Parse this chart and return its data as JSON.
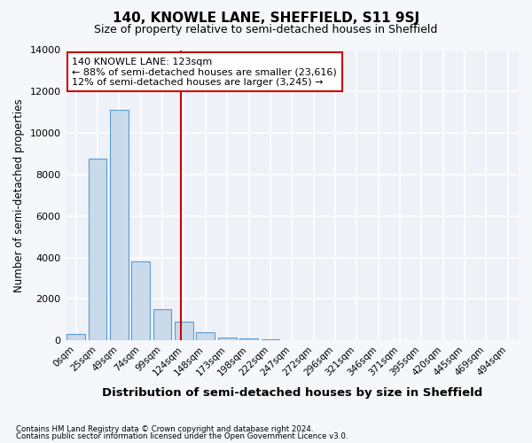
{
  "title": "140, KNOWLE LANE, SHEFFIELD, S11 9SJ",
  "subtitle": "Size of property relative to semi-detached houses in Sheffield",
  "xlabel": "Distribution of semi-detached houses by size in Sheffield",
  "ylabel": "Number of semi-detached properties",
  "bar_color": "#c9daea",
  "bar_edge_color": "#5b9bd5",
  "background_color": "#eef2f8",
  "grid_color": "#ffffff",
  "annotation_box_color": "#cc0000",
  "vline_color": "#cc0000",
  "categories": [
    "0sqm",
    "25sqm",
    "49sqm",
    "74sqm",
    "99sqm",
    "124sqm",
    "148sqm",
    "173sqm",
    "198sqm",
    "222sqm",
    "247sqm",
    "272sqm",
    "296sqm",
    "321sqm",
    "346sqm",
    "371sqm",
    "395sqm",
    "420sqm",
    "445sqm",
    "469sqm",
    "494sqm"
  ],
  "bar_heights": [
    300,
    8750,
    11100,
    3800,
    1500,
    900,
    400,
    130,
    80,
    60,
    0,
    0,
    0,
    0,
    0,
    0,
    0,
    0,
    0,
    0,
    0
  ],
  "ylim": [
    0,
    14000
  ],
  "yticks": [
    0,
    2000,
    4000,
    6000,
    8000,
    10000,
    12000,
    14000
  ],
  "vline_position": 4.85,
  "annotation_text_line1": "140 KNOWLE LANE: 123sqm",
  "annotation_text_line2": "← 88% of semi-detached houses are smaller (23,616)",
  "annotation_text_line3": "12% of semi-detached houses are larger (3,245) →",
  "footnote1": "Contains HM Land Registry data © Crown copyright and database right 2024.",
  "footnote2": "Contains public sector information licensed under the Open Government Licence v3.0."
}
